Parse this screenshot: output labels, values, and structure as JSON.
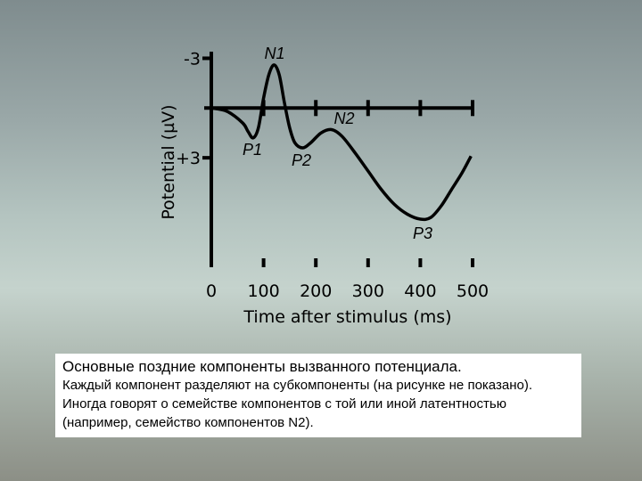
{
  "chart_data": {
    "type": "line",
    "x_label": "Time after stimulus (ms)",
    "y_label": "Potential (µV)",
    "x": [
      0,
      30,
      60,
      70,
      80,
      90,
      100,
      110,
      120,
      130,
      140,
      150,
      160,
      175,
      190,
      210,
      230,
      250,
      275,
      300,
      325,
      350,
      375,
      400,
      420,
      440,
      460,
      480,
      497
    ],
    "series": [
      {
        "color": "#000000",
        "values": [
          0,
          0.2,
          0.9,
          1.4,
          1.8,
          1.2,
          -0.6,
          -2.0,
          -2.6,
          -2.0,
          -0.3,
          1.2,
          2.1,
          2.4,
          2.1,
          1.5,
          1.3,
          1.7,
          2.7,
          3.8,
          4.9,
          5.8,
          6.4,
          6.7,
          6.6,
          5.9,
          4.9,
          3.9,
          2.9
        ]
      }
    ],
    "xlim": [
      0,
      500
    ],
    "xticks": [
      0,
      100,
      200,
      300,
      400,
      500
    ],
    "ylim": [
      9.6,
      -3.4
    ],
    "yticks": [
      -3,
      {
        "value": 3,
        "label": "+3"
      }
    ],
    "annotations": [
      "N1",
      "P1",
      "P2",
      "N2",
      "P3"
    ]
  },
  "caption": {
    "title": "Основные поздние компоненты вызванного потенциала.",
    "text": "Каждый компонент разделяют на субкомпоненты (на рисунке не показано). Иногда говорят о семействе компонентов с той или иной латентностью (например, семейство компонентов N2)."
  }
}
